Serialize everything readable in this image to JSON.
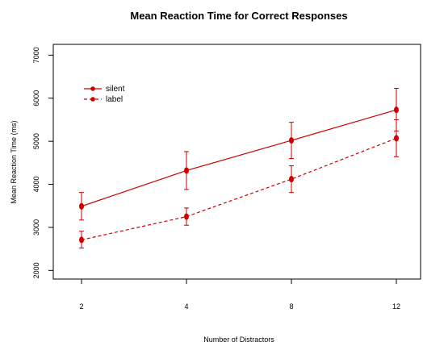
{
  "chart_data": {
    "type": "line",
    "title": "Mean Reaction Time for Correct Responses",
    "xlabel": "Number of Distractors",
    "ylabel": "Mean Reaction Time (ms)",
    "categories": [
      "2",
      "4",
      "8",
      "12"
    ],
    "ylim": [
      1800,
      7250
    ],
    "yticks": [
      "2000",
      "3000",
      "4000",
      "5000",
      "6000",
      "7000"
    ],
    "grid": false,
    "legend_position": "top-left",
    "color": "#cc0000",
    "series": [
      {
        "name": "silent",
        "line_style": "solid",
        "values": [
          3490,
          4320,
          5020,
          5730
        ],
        "error_low": [
          3170,
          3880,
          4600,
          5240
        ],
        "error_high": [
          3810,
          4760,
          5440,
          6230
        ]
      },
      {
        "name": "label",
        "line_style": "dashed",
        "values": [
          2710,
          3250,
          4120,
          5070
        ],
        "error_low": [
          2520,
          3050,
          3810,
          4640
        ],
        "error_high": [
          2910,
          3450,
          4430,
          5500
        ]
      }
    ]
  }
}
